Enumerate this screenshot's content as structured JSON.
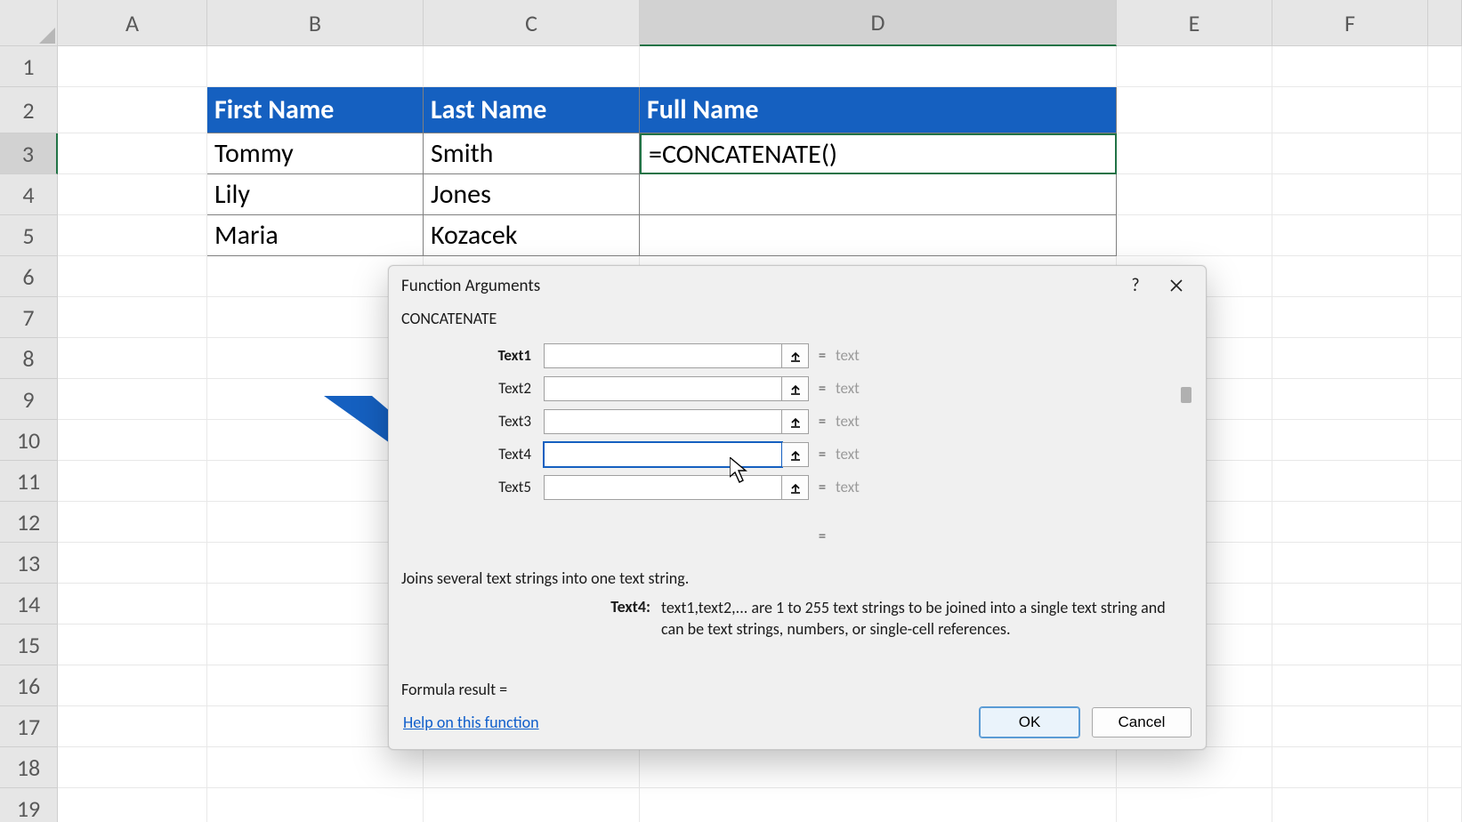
{
  "colors": {
    "header_bg": "#e6e6e6",
    "header_border": "#cfcfcf",
    "grid_line": "#e8e8e8",
    "selection_green": "#217346",
    "table_header_bg": "#1560c0",
    "table_header_fg": "#ffffff",
    "dialog_bg": "#f0f0f0",
    "dialog_border": "#c8c8c8",
    "link_blue": "#0f5ecb",
    "arrow_blue": "#1560c0",
    "muted_text": "#9a9a9a"
  },
  "sheet": {
    "columns": [
      "A",
      "B",
      "C",
      "D",
      "E",
      "F"
    ],
    "rows_visible": 19,
    "selected_column": "D",
    "selected_row": 3,
    "table_headers": {
      "B2": "First Name",
      "C2": "Last Name",
      "D2": "Full Name"
    },
    "data": {
      "B3": "Tommy",
      "C3": "Smith",
      "B4": "Lily",
      "C4": "Jones",
      "B5": "Maria",
      "C5": "Kozacek"
    },
    "formula_cell": {
      "address": "D3",
      "text": "=CONCATENATE()"
    }
  },
  "dialog": {
    "title": "Function Arguments",
    "function_name": "CONCATENATE",
    "args": [
      {
        "label": "Text1",
        "bold": true,
        "value": "",
        "result": "text"
      },
      {
        "label": "Text2",
        "bold": false,
        "value": "",
        "result": "text"
      },
      {
        "label": "Text3",
        "bold": false,
        "value": "",
        "result": "text"
      },
      {
        "label": "Text4",
        "bold": false,
        "value": "",
        "result": "text",
        "active": true
      },
      {
        "label": "Text5",
        "bold": false,
        "value": "",
        "result": "text"
      }
    ],
    "description": "Joins several text strings into one text string.",
    "arg_detail_label": "Text4:",
    "arg_detail_text": "text1,text2,... are 1 to 255 text strings to be joined into a single text string and can be text strings, numbers, or single-cell references.",
    "formula_result_label": "Formula result =",
    "formula_result_value": "",
    "help_link": "Help on this function",
    "ok_label": "OK",
    "cancel_label": "Cancel"
  }
}
